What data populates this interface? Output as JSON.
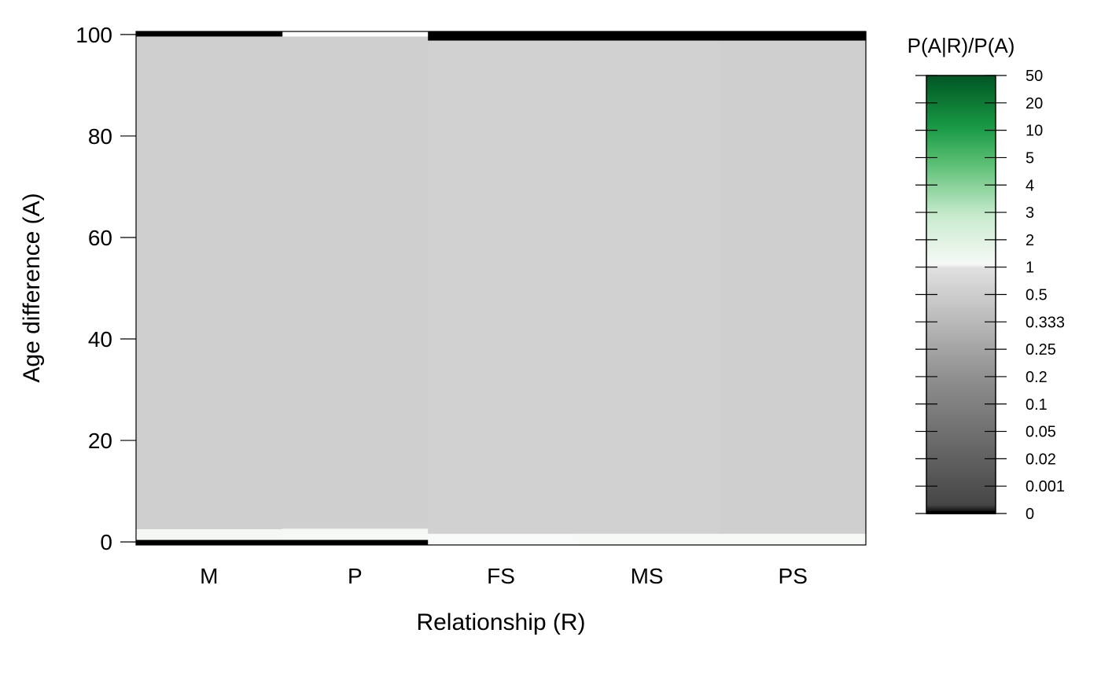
{
  "chart_data": {
    "type": "heatmap",
    "xlabel": "Relationship (R)",
    "ylabel": "Age difference (A)",
    "categories": [
      "M",
      "P",
      "FS",
      "MS",
      "PS"
    ],
    "ylim": [
      0,
      100
    ],
    "yticks": [
      "0",
      "20",
      "40",
      "60",
      "80",
      "100"
    ],
    "colorbar": {
      "title": "P(A|R)/P(A)",
      "labels": [
        "0",
        "0.001",
        "0.02",
        "0.05",
        "0.1",
        "0.2",
        "0.25",
        "0.333",
        "0.5",
        "1",
        "2",
        "3",
        "4",
        "5",
        "10",
        "20",
        "50"
      ]
    },
    "cells": [
      {
        "category": "M",
        "bands": [
          {
            "a0": -0.6,
            "a1": 0.4,
            "ratio": 0
          },
          {
            "a0": 0.4,
            "a1": 2.5,
            "ratio": 1.2
          },
          {
            "a0": 2.5,
            "a1": 99.6,
            "ratio": 0.55
          },
          {
            "a0": 99.6,
            "a1": 100.6,
            "ratio": 0
          }
        ]
      },
      {
        "category": "P",
        "bands": [
          {
            "a0": -0.6,
            "a1": 0.4,
            "ratio": 0
          },
          {
            "a0": 0.4,
            "a1": 1.8,
            "ratio": 1.15
          },
          {
            "a0": 1.8,
            "a1": 2.6,
            "ratio": 1.25
          },
          {
            "a0": 2.6,
            "a1": 3.6,
            "ratio": 0.58
          },
          {
            "a0": 3.6,
            "a1": 99.6,
            "ratio": 0.55
          }
        ]
      },
      {
        "category": "FS",
        "bands": [
          {
            "a0": -0.6,
            "a1": 1.6,
            "ratio": 1.05
          },
          {
            "a0": 1.6,
            "a1": 98.8,
            "ratio": 0.6
          },
          {
            "a0": 98.8,
            "a1": 100.6,
            "ratio": 0
          }
        ]
      },
      {
        "category": "MS",
        "bands": [
          {
            "a0": -0.6,
            "a1": 1.6,
            "ratio": 1.1
          },
          {
            "a0": 1.6,
            "a1": 98.8,
            "ratio": 0.6
          },
          {
            "a0": 98.8,
            "a1": 100.6,
            "ratio": 0
          }
        ]
      },
      {
        "category": "PS",
        "bands": [
          {
            "a0": -0.6,
            "a1": 1.6,
            "ratio": 1.12
          },
          {
            "a0": 1.6,
            "a1": 98.8,
            "ratio": 0.56
          },
          {
            "a0": 98.8,
            "a1": 100.6,
            "ratio": 0
          }
        ]
      }
    ],
    "grid": false,
    "legend": "right"
  }
}
